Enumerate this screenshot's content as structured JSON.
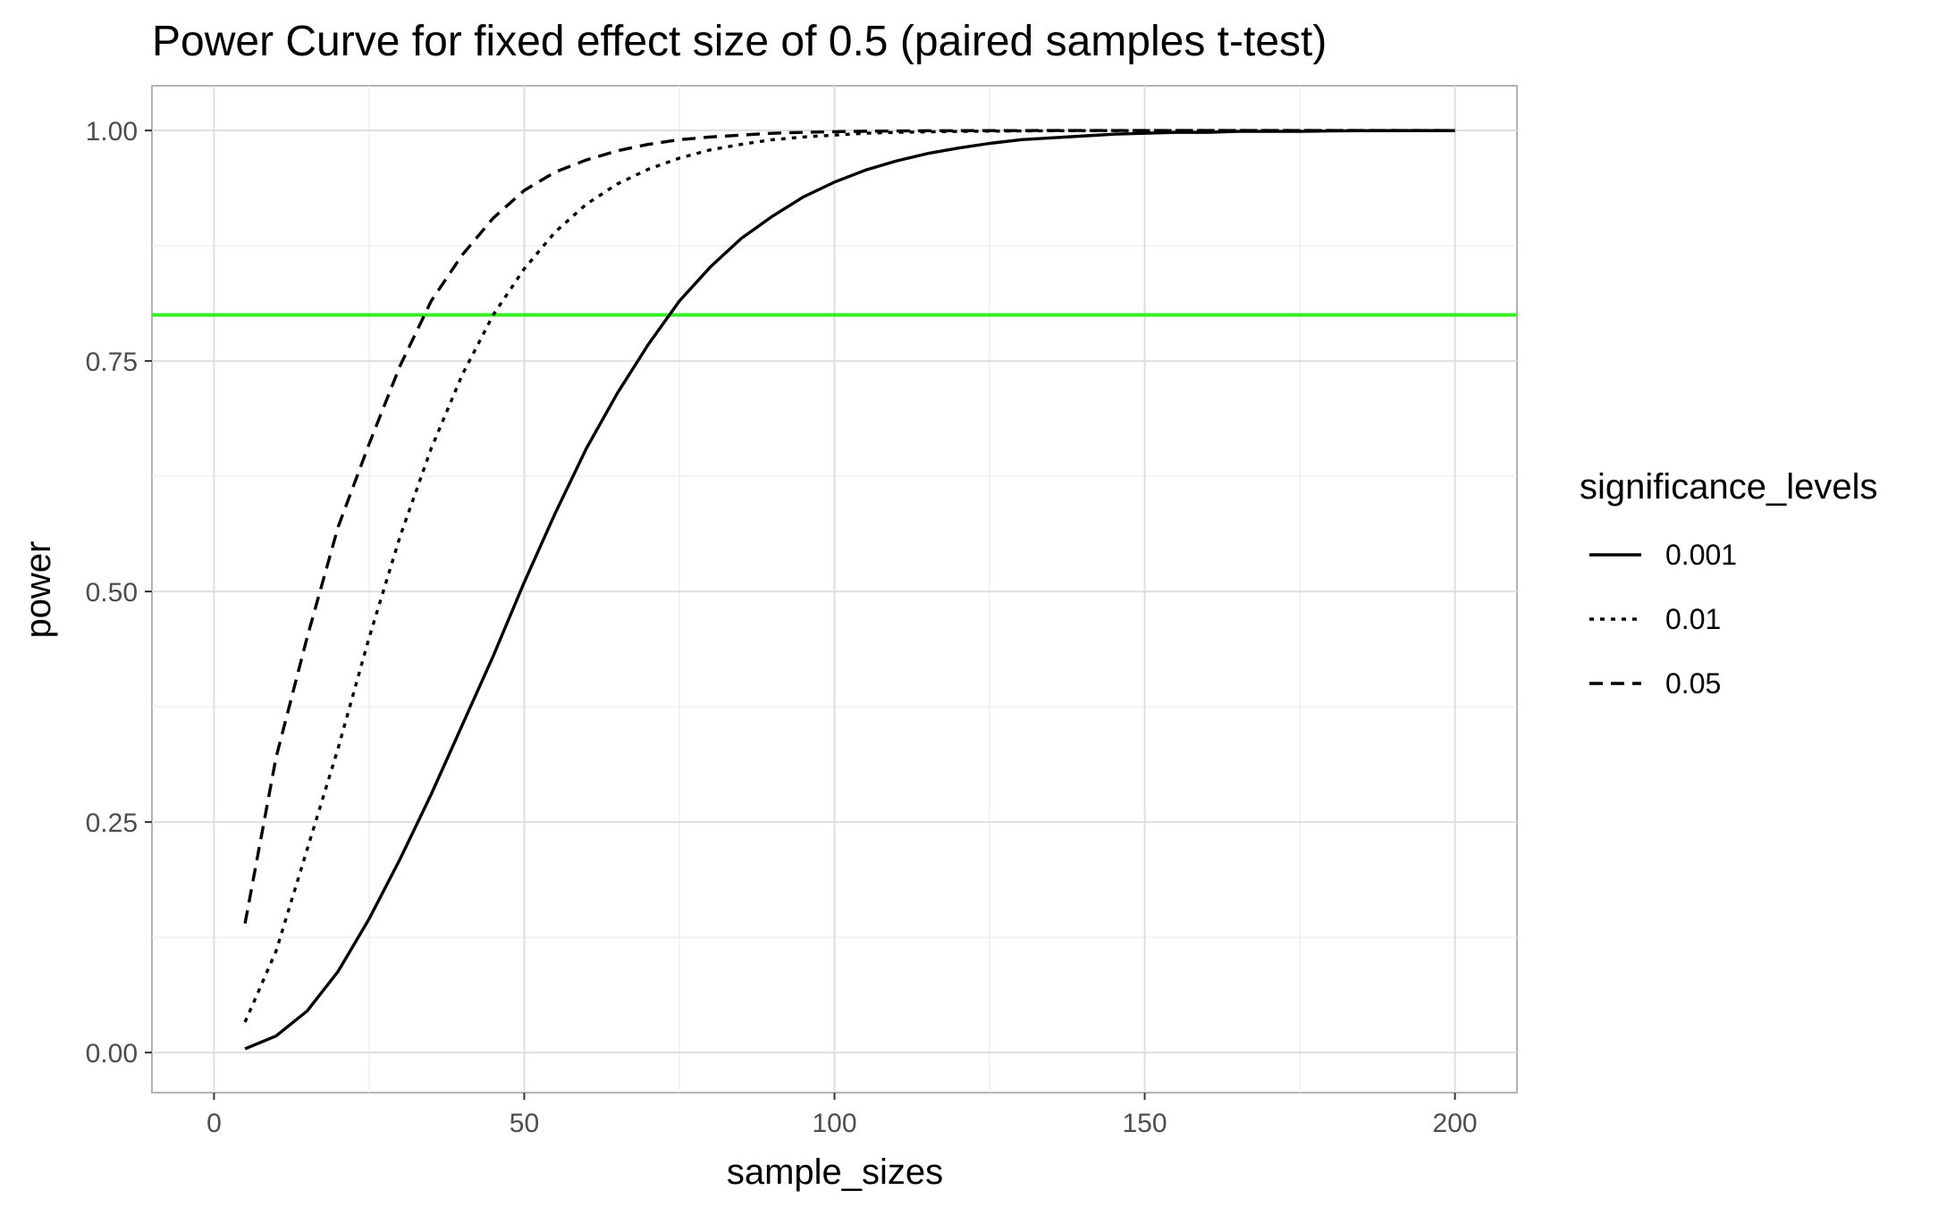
{
  "chart_data": {
    "type": "line",
    "title": "Power Curve for fixed effect size of 0.5 (paired samples t-test)",
    "xlabel": "sample_sizes",
    "ylabel": "power",
    "xlim": [
      -10,
      210
    ],
    "ylim": [
      -0.0435,
      1.0485
    ],
    "x_ticks": [
      0,
      50,
      100,
      150,
      200
    ],
    "x_tick_labels": [
      "0",
      "50",
      "100",
      "150",
      "200"
    ],
    "y_ticks": [
      0,
      0.25,
      0.5,
      0.75,
      1.0
    ],
    "y_tick_labels": [
      "0.00",
      "0.25",
      "0.50",
      "0.75",
      "1.00"
    ],
    "grid": true,
    "legend": {
      "title": "significance_levels",
      "position": "right",
      "entries": [
        "0.001",
        "0.01",
        "0.05"
      ]
    },
    "reference_line": {
      "y": 0.8,
      "color": "#33ee22"
    },
    "x": [
      5,
      10,
      15,
      20,
      25,
      30,
      35,
      40,
      45,
      50,
      55,
      60,
      65,
      70,
      75,
      80,
      85,
      90,
      95,
      100,
      105,
      110,
      115,
      120,
      125,
      130,
      135,
      140,
      145,
      150,
      155,
      160,
      165,
      170,
      175,
      180,
      185,
      190,
      195,
      200
    ],
    "series": [
      {
        "name": "0.001",
        "linetype": "solid",
        "values": [
          0.004,
          0.018,
          0.045,
          0.088,
          0.145,
          0.21,
          0.28,
          0.355,
          0.43,
          0.51,
          0.585,
          0.655,
          0.715,
          0.768,
          0.815,
          0.852,
          0.883,
          0.907,
          0.928,
          0.944,
          0.957,
          0.967,
          0.975,
          0.981,
          0.986,
          0.99,
          0.992,
          0.994,
          0.996,
          0.997,
          0.998,
          0.998,
          0.999,
          0.999,
          0.999,
          0.9995,
          0.9997,
          0.9998,
          0.9999,
          0.9999
        ]
      },
      {
        "name": "0.01",
        "linetype": "dotted",
        "values": [
          0.033,
          0.11,
          0.22,
          0.33,
          0.45,
          0.56,
          0.655,
          0.735,
          0.8,
          0.85,
          0.89,
          0.92,
          0.942,
          0.958,
          0.97,
          0.979,
          0.985,
          0.99,
          0.993,
          0.995,
          0.997,
          0.998,
          0.9985,
          0.999,
          0.9993,
          0.9995,
          0.9997,
          0.9998,
          0.9999,
          0.9999,
          0.9999,
          1.0,
          1.0,
          1.0,
          1.0,
          1.0,
          1.0,
          1.0,
          1.0,
          1.0
        ]
      },
      {
        "name": "0.05",
        "linetype": "dashed",
        "values": [
          0.14,
          0.32,
          0.45,
          0.57,
          0.66,
          0.745,
          0.815,
          0.865,
          0.905,
          0.935,
          0.955,
          0.968,
          0.978,
          0.985,
          0.99,
          0.993,
          0.995,
          0.997,
          0.998,
          0.9987,
          0.9992,
          0.9995,
          0.9997,
          0.9998,
          0.9999,
          0.9999,
          1.0,
          1.0,
          1.0,
          1.0,
          1.0,
          1.0,
          1.0,
          1.0,
          1.0,
          1.0,
          1.0,
          1.0,
          1.0,
          1.0
        ]
      }
    ]
  }
}
